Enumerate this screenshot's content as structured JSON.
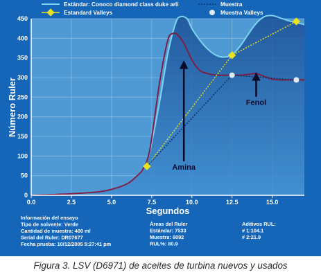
{
  "caption": "Figura 3. LSV (D6971) de aceites de turbina nuevos y usados",
  "legend": {
    "estandar": "Estándar: Conoco diamond class duke arli",
    "muestra": "Muestra",
    "estandar_valleys": "Estandard Valleys",
    "muestra_valleys": "Muestra Valleys"
  },
  "colors": {
    "background": "#1565b8",
    "plot_area": "#4f9ad4",
    "estandar_line": "#7fd3f2",
    "estandar_fill": "#1d5da3",
    "muestra_line": "#7d1e46",
    "estandar_valleys": "#e9e21f",
    "muestra_valleys": "#dfe9f2",
    "dashed_muestra": "#0c2f6a"
  },
  "info": {
    "left": [
      "Información del ensayo",
      "Tipo de solvente: Verde",
      "Cantidad de muestra: 400 ml",
      "Serial del Ruler: DR07677",
      "Fecha prueba: 10/12/2005 5:27:41 pm"
    ],
    "middle": [
      "Áreas del Ruler",
      "Estándar: 7533",
      "Muestra: 6092",
      "RUL%: 80.9"
    ],
    "right": [
      "Aditivos RUL:",
      "# 1:104.1",
      "# 2:21.9"
    ]
  },
  "chart_data": {
    "type": "line",
    "xlabel": "Segundos",
    "ylabel": "Número Ruler",
    "xlim": [
      0,
      17
    ],
    "ylim": [
      0,
      450
    ],
    "xticks": [
      "0.0",
      "2.5",
      "5.0",
      "7.5",
      "10.0",
      "12.5",
      "15.0"
    ],
    "yticks": [
      "0",
      "50",
      "100",
      "150",
      "200",
      "250",
      "300",
      "350",
      "400",
      "450"
    ],
    "series": [
      {
        "name": "Estándar: Conoco diamond class duke arli",
        "x": [
          0,
          2,
          4,
          5,
          6,
          6.6,
          7,
          7.4,
          8,
          8.5,
          9,
          9.3,
          9.7,
          10,
          10.5,
          11,
          11.5,
          12,
          12.5,
          13,
          13.5,
          14,
          14.5,
          15,
          15.5,
          16,
          16.5,
          17
        ],
        "y": [
          0,
          3,
          8,
          15,
          30,
          50,
          70,
          115,
          240,
          360,
          440,
          455,
          450,
          425,
          395,
          372,
          357,
          352,
          358,
          380,
          410,
          438,
          455,
          458,
          452,
          445,
          440,
          435
        ]
      },
      {
        "name": "Muestra",
        "x": [
          0,
          2,
          4,
          5,
          6,
          6.6,
          7,
          7.4,
          8,
          8.5,
          8.8,
          9,
          9.2,
          9.5,
          10,
          10.5,
          11,
          11.5,
          12,
          12.5,
          13,
          13.5,
          14,
          14.5,
          15,
          15.5,
          16,
          16.5,
          17
        ],
        "y": [
          0,
          3,
          8,
          15,
          30,
          50,
          70,
          120,
          290,
          395,
          412,
          412,
          405,
          388,
          345,
          318,
          310,
          306,
          306,
          306,
          306,
          308,
          310,
          303,
          296,
          294,
          294,
          294,
          294
        ]
      }
    ],
    "valleys": {
      "estandar": {
        "name": "Estandard Valleys",
        "x": [
          7.2,
          12.5,
          16.5
        ],
        "y": [
          74,
          357,
          443
        ]
      },
      "muestra": {
        "name": "Muestra Valleys",
        "x": [
          7.2,
          12.5,
          16.5
        ],
        "y": [
          74,
          306,
          294
        ]
      }
    },
    "annotations": [
      {
        "text": "Amina",
        "x": 9.5,
        "y": 65,
        "arrow_to_y": 340
      },
      {
        "text": "Fenol",
        "x": 14.0,
        "y": 230,
        "arrow_to_y": 310
      }
    ],
    "grid": true,
    "legend_position": "top"
  }
}
